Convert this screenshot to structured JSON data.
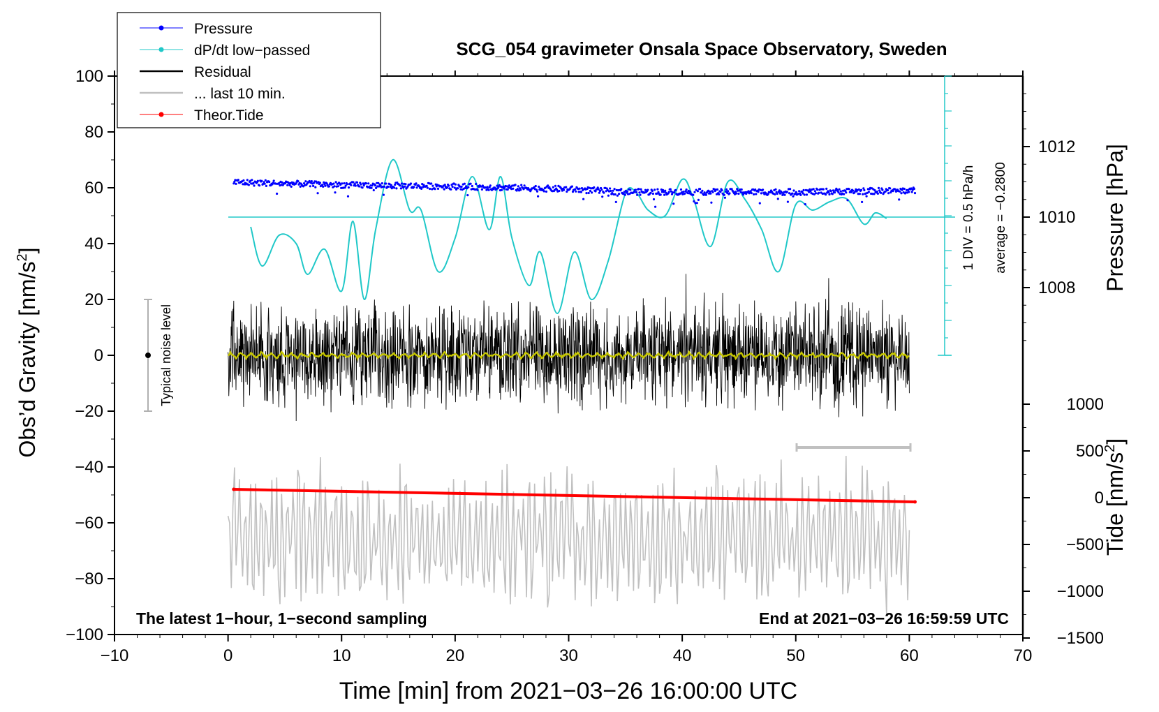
{
  "chart_data": {
    "type": "line",
    "title": "SCG_054 gravimeter Onsala Space Observatory, Sweden",
    "xlabel": "Time [min] from 2021−03−26 16:00:00 UTC",
    "ylabel": "Obs’d Gravity [nm/s",
    "ylabel_sup": "2",
    "ylabel_end": "]",
    "right_label_pressure": "Pressure [hPa]",
    "right_label_tide": "Tide [nm/s",
    "right_label_tide_sup": "2",
    "right_label_tide_end": "]",
    "xlim": [
      -10,
      70
    ],
    "ylim": [
      -100,
      100
    ],
    "x_ticks": [
      "−10",
      "0",
      "10",
      "20",
      "30",
      "40",
      "50",
      "60",
      "70"
    ],
    "y_ticks": [
      "100",
      "80",
      "60",
      "40",
      "20",
      "0",
      "−20",
      "−40",
      "−60",
      "−80",
      "−100"
    ],
    "pressure_ticks": [
      "1012",
      "1010",
      "1008"
    ],
    "tide_ticks": [
      "1000",
      "500",
      "0",
      "−500",
      "−1000",
      "−1500"
    ],
    "pressure_axis": {
      "range_hPa": [
        1008,
        1012
      ],
      "reference_hPa": 1010
    },
    "tide_axis": {
      "range_nm_s2": [
        -1500,
        1000
      ]
    },
    "dpdt_scale_label": "1 DIV = 0.5 hPa/h",
    "dpdt_average_label": "average = −0.2800",
    "noise_label": "Typical noise level",
    "noise_range": [
      -20,
      20
    ],
    "bottom_left_text": "The latest 1−hour, 1−second sampling",
    "bottom_right_text": "End at 2021−03−26 16:59:59 UTC",
    "last10_bracket_min": [
      50,
      60
    ],
    "legend": [
      {
        "label": "Pressure",
        "color": "#0000ff"
      },
      {
        "label": "dP/dt low−passed",
        "color": "#20c8c8"
      },
      {
        "label": "Residual",
        "color": "#000000"
      },
      {
        "label": "... last 10 min.",
        "color": "#c0c0c0"
      },
      {
        "label": "Theor.Tide",
        "color": "#ff0000"
      }
    ],
    "series": [
      {
        "name": "Pressure",
        "color": "#0000ff",
        "x": [
          0.5,
          10,
          20,
          30,
          35,
          40,
          50,
          60.5
        ],
        "values": [
          62,
          61,
          60.5,
          59.5,
          58.5,
          58.5,
          58.5,
          59
        ]
      },
      {
        "name": "dP/dt low−passed",
        "color": "#20c8c8",
        "x": [
          2,
          3,
          4.5,
          6,
          7,
          8.5,
          10,
          11,
          12,
          13,
          14.5,
          16,
          17,
          18.5,
          20,
          21.5,
          23,
          24,
          25,
          26.5,
          27.5,
          29,
          30.5,
          32,
          33.5,
          35,
          36,
          37,
          38.5,
          40,
          41,
          42.5,
          44,
          45.5,
          47,
          48.5,
          50,
          51.5,
          53,
          54.5,
          56,
          57,
          58
        ],
        "values": [
          46,
          32,
          43,
          40,
          29,
          38,
          23,
          48,
          20,
          45,
          70,
          52,
          52,
          30,
          42,
          64,
          45,
          64,
          42,
          25,
          37,
          15,
          37,
          20,
          34,
          58,
          58,
          52,
          50,
          63,
          56,
          39,
          62,
          56,
          45,
          30,
          54,
          52,
          55,
          56,
          47,
          51,
          49
        ]
      },
      {
        "name": "Residual",
        "color": "#000000",
        "x_range": [
          0,
          60
        ],
        "envelope_amplitude": 28
      },
      {
        "name": "... last 10 min.",
        "color": "#c0c0c0",
        "x_range": [
          0,
          60
        ],
        "center": -65,
        "envelope_amplitude": 30
      },
      {
        "name": "Theor.Tide",
        "color": "#ff0000",
        "x": [
          0.5,
          60.5
        ],
        "values": [
          -48,
          -52.5
        ]
      },
      {
        "name": "Residual smooth",
        "color": "#c8c800",
        "x_range": [
          0,
          60
        ],
        "values_center": 0
      }
    ]
  }
}
